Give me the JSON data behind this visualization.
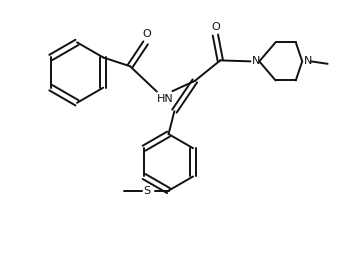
{
  "bg_color": "#ffffff",
  "lc": "#111111",
  "lw": 1.4,
  "fs": 8.0,
  "xlim": [
    0.0,
    7.2
  ],
  "ylim": [
    0.0,
    5.2
  ]
}
